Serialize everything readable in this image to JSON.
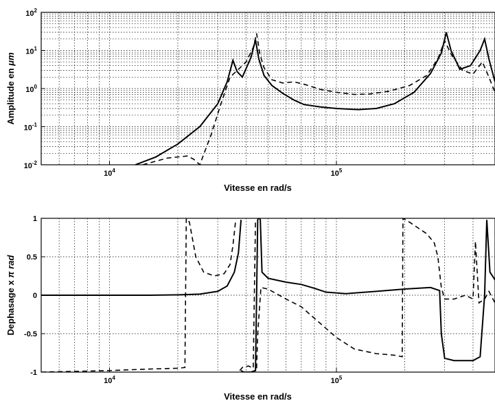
{
  "chart_data": [
    {
      "type": "line",
      "title": "",
      "xlabel": "Vitesse en rad/s",
      "ylabel": "Amplitude en μm",
      "ylabel_parts": {
        "prefix": "Amplitude en ",
        "unit": "μm"
      },
      "xscale": "log",
      "yscale": "log",
      "xlim": [
        5000,
        500000
      ],
      "ylim": [
        0.01,
        100
      ],
      "grid": true,
      "grid_minor": true,
      "xtick_labels": [
        {
          "value": 10000,
          "base": "10",
          "exp": "4"
        },
        {
          "value": 100000,
          "base": "10",
          "exp": "5"
        }
      ],
      "ytick_labels": [
        {
          "value": 100,
          "base": "10",
          "exp": "2"
        },
        {
          "value": 10,
          "base": "10",
          "exp": "1"
        },
        {
          "value": 1,
          "base": "10",
          "exp": "0"
        },
        {
          "value": 0.1,
          "base": "10",
          "exp": "-1"
        },
        {
          "value": 0.01,
          "base": "10",
          "exp": "-2"
        }
      ],
      "series": [
        {
          "style": "solid",
          "points": [
            [
              13000,
              0.01
            ],
            [
              16000,
              0.016
            ],
            [
              20000,
              0.035
            ],
            [
              25000,
              0.1
            ],
            [
              30000,
              0.4
            ],
            [
              33000,
              1.5
            ],
            [
              35000,
              5.5
            ],
            [
              36500,
              2.8
            ],
            [
              38500,
              2.0
            ],
            [
              42000,
              6.5
            ],
            [
              44000,
              19
            ],
            [
              45500,
              6
            ],
            [
              48000,
              2.2
            ],
            [
              52000,
              1.2
            ],
            [
              58000,
              0.75
            ],
            [
              65000,
              0.5
            ],
            [
              72000,
              0.38
            ],
            [
              85000,
              0.33
            ],
            [
              100000,
              0.3
            ],
            [
              125000,
              0.28
            ],
            [
              150000,
              0.3
            ],
            [
              180000,
              0.4
            ],
            [
              220000,
              0.8
            ],
            [
              260000,
              2.5
            ],
            [
              290000,
              8.5
            ],
            [
              305000,
              30
            ],
            [
              320000,
              10
            ],
            [
              350000,
              3.2
            ],
            [
              390000,
              4
            ],
            [
              430000,
              10
            ],
            [
              450000,
              20
            ],
            [
              470000,
              6
            ],
            [
              500000,
              1.5
            ]
          ]
        },
        {
          "style": "dashed",
          "points": [
            [
              14000,
              0.01
            ],
            [
              18000,
              0.015
            ],
            [
              22000,
              0.017
            ],
            [
              23500,
              0.014
            ],
            [
              25000,
              0.01
            ],
            [
              28000,
              0.06
            ],
            [
              31000,
              0.4
            ],
            [
              34000,
              2.0
            ],
            [
              37000,
              3.2
            ],
            [
              40000,
              5
            ],
            [
              43000,
              12
            ],
            [
              44500,
              28
            ],
            [
              46000,
              8
            ],
            [
              48000,
              3.5
            ],
            [
              52000,
              1.7
            ],
            [
              58000,
              1.4
            ],
            [
              65000,
              1.5
            ],
            [
              72000,
              1.3
            ],
            [
              85000,
              0.95
            ],
            [
              100000,
              0.8
            ],
            [
              120000,
              0.7
            ],
            [
              140000,
              0.72
            ],
            [
              170000,
              0.85
            ],
            [
              210000,
              1.2
            ],
            [
              250000,
              2.2
            ],
            [
              280000,
              6
            ],
            [
              300000,
              18
            ],
            [
              320000,
              8
            ],
            [
              360000,
              3
            ],
            [
              400000,
              2.4
            ],
            [
              440000,
              5
            ],
            [
              470000,
              2
            ],
            [
              500000,
              0.8
            ]
          ]
        }
      ]
    },
    {
      "type": "line",
      "title": "",
      "xlabel": "Vitesse en rad/s",
      "ylabel": "Dephasage x π rad",
      "ylabel_parts": {
        "prefix": "Dephasage x ",
        "unit": "π rad"
      },
      "xscale": "log",
      "yscale": "linear",
      "xlim": [
        5000,
        500000
      ],
      "ylim": [
        -1,
        1
      ],
      "grid": true,
      "grid_minor": true,
      "xtick_labels": [
        {
          "value": 10000,
          "base": "10",
          "exp": "4"
        },
        {
          "value": 100000,
          "base": "10",
          "exp": "5"
        }
      ],
      "ytick_labels": [
        {
          "value": 1,
          "text": "1"
        },
        {
          "value": 0.5,
          "text": "0.5"
        },
        {
          "value": 0,
          "text": "0"
        },
        {
          "value": -0.5,
          "text": "-0.5"
        },
        {
          "value": -1,
          "text": "-1"
        }
      ],
      "series": [
        {
          "style": "solid",
          "segments": [
            [
              [
                5000,
                0.0
              ],
              [
                15000,
                0.0
              ],
              [
                20000,
                0.005
              ],
              [
                25000,
                0.015
              ],
              [
                30000,
                0.05
              ],
              [
                33000,
                0.12
              ],
              [
                35500,
                0.3
              ],
              [
                37000,
                0.55
              ],
              [
                38000,
                0.98
              ]
            ],
            [
              [
                38000,
                -0.98
              ],
              [
                39000,
                -1.0
              ],
              [
                42000,
                -1.0
              ],
              [
                44000,
                -0.98
              ],
              [
                44500,
                0.0
              ],
              [
                45000,
                0.98
              ],
              [
                45300,
                1.0
              ]
            ],
            [
              [
                45800,
                1.0
              ],
              [
                46200,
                0.98
              ],
              [
                47000,
                0.3
              ],
              [
                50000,
                0.22
              ],
              [
                60000,
                0.17
              ],
              [
                70000,
                0.14
              ],
              [
                80000,
                0.09
              ],
              [
                90000,
                0.04
              ],
              [
                110000,
                0.02
              ],
              [
                150000,
                0.05
              ],
              [
                200000,
                0.08
              ],
              [
                260000,
                0.1
              ],
              [
                285000,
                0.06
              ],
              [
                290000,
                -0.5
              ],
              [
                300000,
                -0.82
              ],
              [
                330000,
                -0.85
              ],
              [
                400000,
                -0.85
              ],
              [
                430000,
                -0.8
              ],
              [
                450000,
                0.0
              ],
              [
                460000,
                0.98
              ],
              [
                475000,
                0.3
              ],
              [
                500000,
                0.2
              ]
            ]
          ]
        },
        {
          "style": "dashed",
          "segments": [
            [
              [
                5000,
                -1.0
              ],
              [
                10000,
                -0.98
              ],
              [
                15000,
                -0.96
              ],
              [
                20000,
                -0.95
              ],
              [
                21500,
                -0.94
              ],
              [
                21800,
                1.0
              ],
              [
                22500,
                0.95
              ],
              [
                24000,
                0.5
              ],
              [
                26000,
                0.3
              ],
              [
                29000,
                0.25
              ],
              [
                32000,
                0.28
              ],
              [
                34000,
                0.4
              ],
              [
                35000,
                0.65
              ],
              [
                36000,
                0.98
              ]
            ],
            [
              [
                37500,
                -0.98
              ],
              [
                38500,
                -0.94
              ],
              [
                41000,
                -0.92
              ],
              [
                43000,
                -0.95
              ],
              [
                44000,
                0.98
              ]
            ],
            [
              [
                44500,
                -0.95
              ],
              [
                45000,
                -0.5
              ],
              [
                46500,
                0.1
              ],
              [
                50000,
                0.08
              ],
              [
                60000,
                -0.05
              ],
              [
                70000,
                -0.15
              ],
              [
                80000,
                -0.3
              ],
              [
                100000,
                -0.55
              ],
              [
                120000,
                -0.7
              ],
              [
                150000,
                -0.76
              ],
              [
                180000,
                -0.78
              ],
              [
                195000,
                -0.8
              ],
              [
                196500,
                1.0
              ],
              [
                210000,
                0.95
              ],
              [
                250000,
                0.8
              ],
              [
                270000,
                0.68
              ],
              [
                280000,
                0.5
              ],
              [
                290000,
                0.1
              ],
              [
                300000,
                -0.05
              ],
              [
                330000,
                -0.05
              ],
              [
                370000,
                0.0
              ],
              [
                400000,
                -0.05
              ],
              [
                410000,
                0.7
              ],
              [
                425000,
                -0.1
              ],
              [
                450000,
                -0.05
              ],
              [
                470000,
                0.05
              ],
              [
                500000,
                -0.1
              ]
            ]
          ]
        }
      ]
    }
  ]
}
